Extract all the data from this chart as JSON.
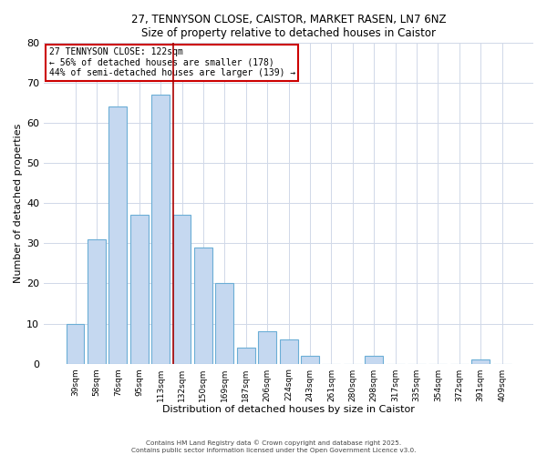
{
  "title": "27, TENNYSON CLOSE, CAISTOR, MARKET RASEN, LN7 6NZ",
  "subtitle": "Size of property relative to detached houses in Caistor",
  "xlabel": "Distribution of detached houses by size in Caistor",
  "ylabel": "Number of detached properties",
  "bar_labels": [
    "39sqm",
    "58sqm",
    "76sqm",
    "95sqm",
    "113sqm",
    "132sqm",
    "150sqm",
    "169sqm",
    "187sqm",
    "206sqm",
    "224sqm",
    "243sqm",
    "261sqm",
    "280sqm",
    "298sqm",
    "317sqm",
    "335sqm",
    "354sqm",
    "372sqm",
    "391sqm",
    "409sqm"
  ],
  "bar_values": [
    10,
    31,
    64,
    37,
    67,
    37,
    29,
    20,
    4,
    8,
    6,
    2,
    0,
    0,
    2,
    0,
    0,
    0,
    0,
    1,
    0
  ],
  "bar_color": "#c5d8f0",
  "bar_edge_color": "#6baed6",
  "vline_x_index": 5,
  "vline_color": "#aa0000",
  "annotation_text": "27 TENNYSON CLOSE: 122sqm\n← 56% of detached houses are smaller (178)\n44% of semi-detached houses are larger (139) →",
  "annotation_box_facecolor": "#ffffff",
  "annotation_box_edgecolor": "#cc0000",
  "ylim": [
    0,
    80
  ],
  "yticks": [
    0,
    10,
    20,
    30,
    40,
    50,
    60,
    70,
    80
  ],
  "background_color": "#ffffff",
  "grid_color": "#d0d8e8",
  "footer_line1": "Contains HM Land Registry data © Crown copyright and database right 2025.",
  "footer_line2": "Contains public sector information licensed under the Open Government Licence v3.0."
}
